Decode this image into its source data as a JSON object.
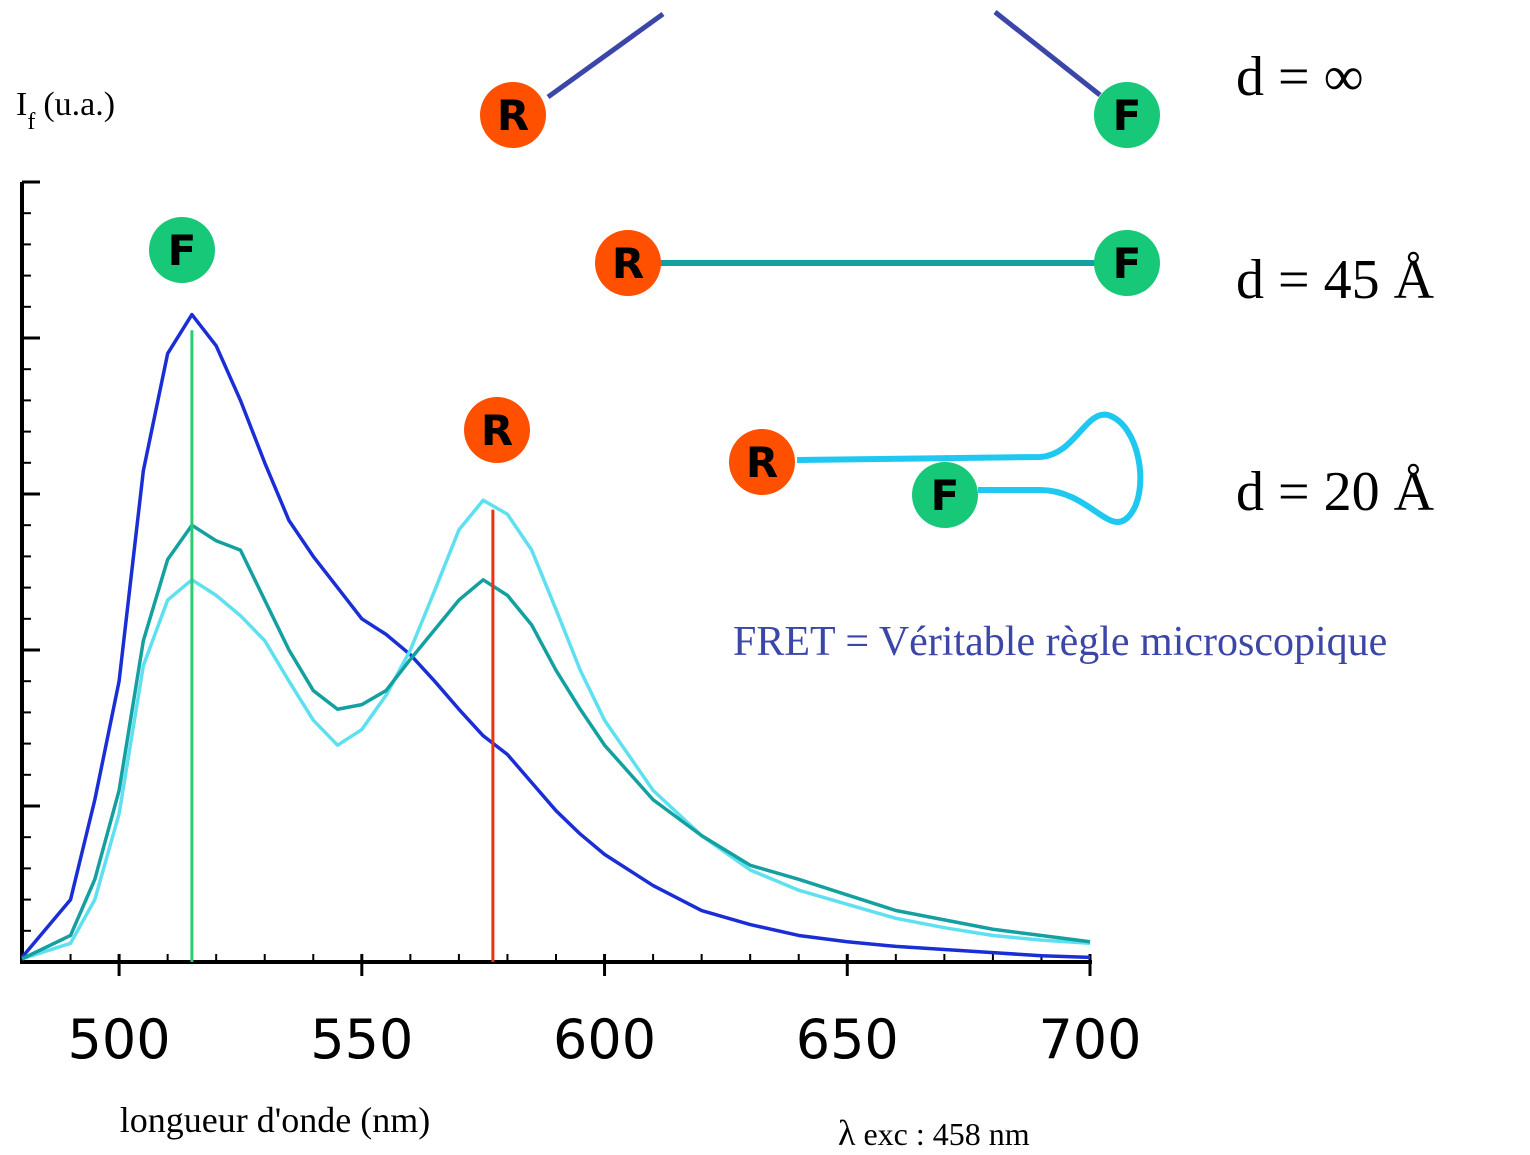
{
  "chart_data": {
    "type": "line",
    "ylabel": {
      "main": "I",
      "sub": "f",
      "unit": "(u.a.)"
    },
    "xlabel": "longueur d'onde (nm)",
    "excitation": {
      "symbol": "λ",
      "text": "exc : 458 nm"
    },
    "note": "FRET = Véritable règle microscopique",
    "distances": [
      "d = ∞",
      "d = 45 Å",
      "d = 20 Å"
    ],
    "xlim": [
      480,
      700
    ],
    "xticks": [
      500,
      550,
      600,
      650,
      700
    ],
    "xminorticks": [
      490,
      510,
      520,
      530,
      540,
      560,
      570,
      580,
      590,
      610,
      620,
      630,
      640,
      660,
      670,
      680,
      690
    ],
    "ylim": [
      0,
      5
    ],
    "yticks": [
      0,
      1,
      2,
      3,
      4,
      5
    ],
    "yminorticks": [
      0.2,
      0.4,
      0.6,
      0.8,
      1.2,
      1.4,
      1.6,
      1.8,
      2.2,
      2.4,
      2.6,
      2.8,
      3.2,
      3.4,
      3.6,
      3.8,
      4.2,
      4.4,
      4.6,
      4.8
    ],
    "x": [
      480,
      490,
      495,
      500,
      505,
      510,
      515,
      520,
      525,
      530,
      535,
      540,
      545,
      550,
      555,
      560,
      565,
      570,
      575,
      580,
      585,
      590,
      595,
      600,
      610,
      620,
      630,
      640,
      650,
      660,
      670,
      680,
      690,
      700
    ],
    "series": [
      {
        "color": "#1a2ed6",
        "values": [
          0.03,
          0.4,
          1.04,
          1.8,
          3.15,
          3.9,
          4.15,
          3.95,
          3.6,
          3.2,
          2.83,
          2.6,
          2.4,
          2.2,
          2.1,
          1.97,
          1.8,
          1.62,
          1.45,
          1.33,
          1.15,
          0.97,
          0.82,
          0.69,
          0.49,
          0.33,
          0.24,
          0.17,
          0.13,
          0.1,
          0.08,
          0.06,
          0.04,
          0.03
        ]
      },
      {
        "color": "#5ee0f0",
        "values": [
          0.02,
          0.12,
          0.4,
          0.95,
          1.9,
          2.32,
          2.45,
          2.35,
          2.22,
          2.06,
          1.8,
          1.55,
          1.39,
          1.49,
          1.71,
          2.0,
          2.38,
          2.77,
          2.96,
          2.87,
          2.64,
          2.26,
          1.87,
          1.55,
          1.1,
          0.81,
          0.59,
          0.46,
          0.37,
          0.28,
          0.22,
          0.17,
          0.14,
          0.12
        ]
      },
      {
        "color": "#14a0a0",
        "values": [
          0.02,
          0.17,
          0.53,
          1.1,
          2.06,
          2.58,
          2.8,
          2.7,
          2.64,
          2.32,
          2.0,
          1.74,
          1.62,
          1.65,
          1.74,
          1.94,
          2.13,
          2.32,
          2.45,
          2.35,
          2.16,
          1.87,
          1.62,
          1.39,
          1.04,
          0.81,
          0.62,
          0.53,
          0.43,
          0.33,
          0.27,
          0.21,
          0.17,
          0.13
        ]
      }
    ],
    "reference_lines": [
      {
        "x": 515,
        "y": 4.05,
        "color": "#2ecc71"
      },
      {
        "x": 577,
        "y": 2.9,
        "color": "#f03010"
      }
    ],
    "circles": [
      {
        "label": "R",
        "color": "#ff5000"
      },
      {
        "label": "F",
        "color": "#16c878"
      },
      {
        "label": "F",
        "color": "#16c878"
      },
      {
        "label": "R",
        "color": "#ff5000"
      },
      {
        "label": "F",
        "color": "#16c878"
      },
      {
        "label": "R",
        "color": "#ff5000"
      },
      {
        "label": "R",
        "color": "#ff5000"
      },
      {
        "label": "F",
        "color": "#16c878"
      }
    ]
  }
}
